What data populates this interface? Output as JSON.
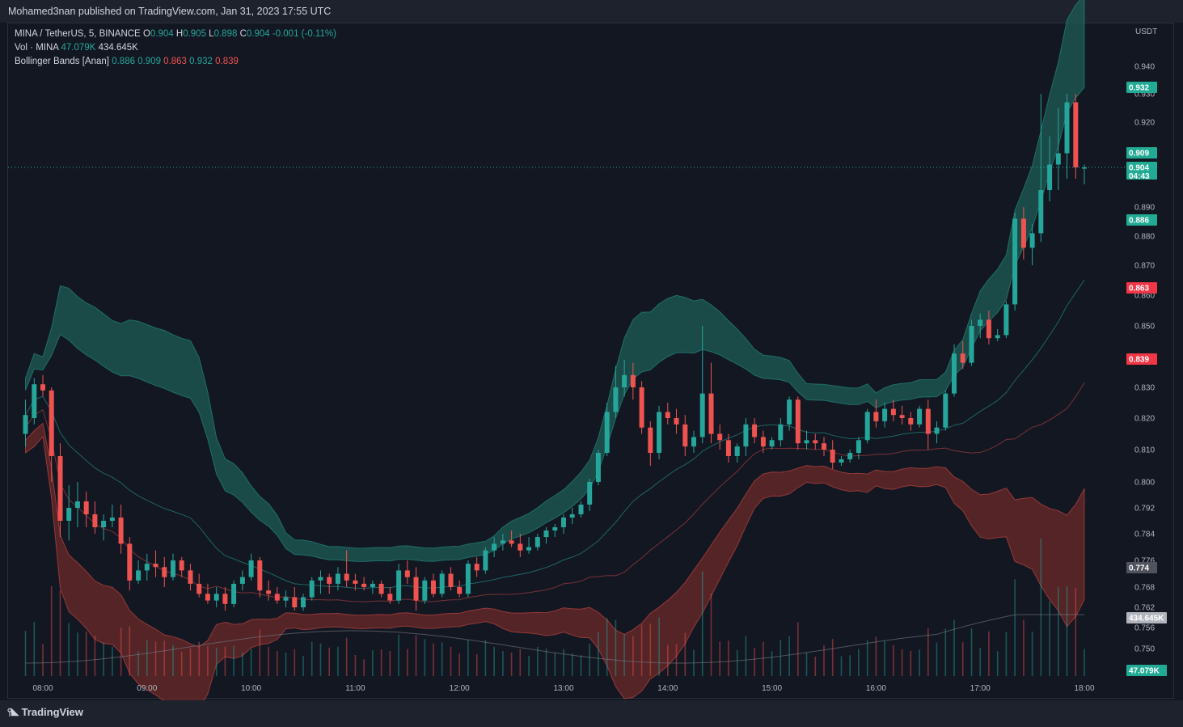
{
  "header": {
    "publisher_line": "Mohamed3nan published on TradingView.com, Jan 31, 2023 17:55 UTC"
  },
  "legend": {
    "symbol": "MINA / TetherUS, 5, BINANCE",
    "open_label": "O",
    "open": "0.904",
    "high_label": "H",
    "high": "0.905",
    "low_label": "L",
    "low": "0.898",
    "close_label": "C",
    "close": "0.904",
    "change": "-0.001 (-0.11%)",
    "vol_label": "Vol · MINA",
    "vol_value": "47.079K",
    "vol_ma": "434.645K",
    "bb_label": "Bollinger Bands [Anan]",
    "bb_values": [
      "0.886",
      "0.909",
      "0.863",
      "0.932",
      "0.839"
    ]
  },
  "branding": {
    "logo_text": "TradingView"
  },
  "chart_data": {
    "type": "candlestick",
    "symbol": "MINA / TetherUS",
    "interval": "5",
    "exchange": "BINANCE",
    "currency": "USDT",
    "grid": false,
    "price_axis_side": "right",
    "price_ticks": [
      "0.940",
      "0.930",
      "0.920",
      "0.890",
      "0.880",
      "0.870",
      "0.860",
      "0.850",
      "0.830",
      "0.820",
      "0.810",
      "0.800",
      "0.792",
      "0.784",
      "0.776",
      "0.768",
      "0.762",
      "0.756",
      "0.750"
    ],
    "time_ticks": [
      "08:00",
      "09:00",
      "10:00",
      "11:00",
      "12:00",
      "13:00",
      "14:00",
      "15:00",
      "16:00",
      "17:00",
      "18:00"
    ],
    "price_tags": [
      {
        "value": "0.932",
        "color": "#22ab94"
      },
      {
        "value": "0.909",
        "color": "#22ab94"
      },
      {
        "value": "0.904",
        "color": "#22ab94",
        "sub": "04:43"
      },
      {
        "value": "0.886",
        "color": "#22ab94"
      },
      {
        "value": "0.863",
        "color": "#f23645"
      },
      {
        "value": "0.839",
        "color": "#f23645"
      },
      {
        "value": "0.774",
        "color": "#50535e"
      },
      {
        "value": "434.645K",
        "color": "#b2b5be"
      },
      {
        "value": "47.079K",
        "color": "#22ab94"
      }
    ],
    "last_price": 0.904,
    "colors": {
      "up": "#26a69a",
      "down": "#ef5350",
      "upper_band": "#1f5e55",
      "lower_band": "#6b2a2a"
    },
    "candles": [
      {
        "t": "07:50",
        "o": 0.815,
        "h": 0.826,
        "l": 0.811,
        "c": 0.821
      },
      {
        "t": "07:55",
        "o": 0.82,
        "h": 0.833,
        "l": 0.818,
        "c": 0.831
      },
      {
        "t": "08:00",
        "o": 0.831,
        "h": 0.834,
        "l": 0.827,
        "c": 0.829
      },
      {
        "t": "08:05",
        "o": 0.829,
        "h": 0.83,
        "l": 0.8,
        "c": 0.808
      },
      {
        "t": "08:10",
        "o": 0.808,
        "h": 0.812,
        "l": 0.783,
        "c": 0.788
      },
      {
        "t": "08:15",
        "o": 0.788,
        "h": 0.799,
        "l": 0.782,
        "c": 0.792
      },
      {
        "t": "08:20",
        "o": 0.792,
        "h": 0.8,
        "l": 0.786,
        "c": 0.794
      },
      {
        "t": "08:25",
        "o": 0.794,
        "h": 0.797,
        "l": 0.786,
        "c": 0.79
      },
      {
        "t": "08:30",
        "o": 0.79,
        "h": 0.794,
        "l": 0.784,
        "c": 0.786
      },
      {
        "t": "08:35",
        "o": 0.786,
        "h": 0.79,
        "l": 0.782,
        "c": 0.788
      },
      {
        "t": "08:40",
        "o": 0.788,
        "h": 0.793,
        "l": 0.786,
        "c": 0.789
      },
      {
        "t": "08:45",
        "o": 0.789,
        "h": 0.793,
        "l": 0.778,
        "c": 0.781
      },
      {
        "t": "08:50",
        "o": 0.781,
        "h": 0.783,
        "l": 0.767,
        "c": 0.77
      },
      {
        "t": "08:55",
        "o": 0.77,
        "h": 0.776,
        "l": 0.769,
        "c": 0.773
      },
      {
        "t": "09:00",
        "o": 0.773,
        "h": 0.778,
        "l": 0.77,
        "c": 0.775
      },
      {
        "t": "09:05",
        "o": 0.775,
        "h": 0.779,
        "l": 0.771,
        "c": 0.774
      },
      {
        "t": "09:10",
        "o": 0.774,
        "h": 0.777,
        "l": 0.768,
        "c": 0.771
      },
      {
        "t": "09:15",
        "o": 0.771,
        "h": 0.778,
        "l": 0.77,
        "c": 0.776
      },
      {
        "t": "09:20",
        "o": 0.776,
        "h": 0.777,
        "l": 0.771,
        "c": 0.773
      },
      {
        "t": "09:25",
        "o": 0.773,
        "h": 0.775,
        "l": 0.767,
        "c": 0.769
      },
      {
        "t": "09:30",
        "o": 0.769,
        "h": 0.772,
        "l": 0.765,
        "c": 0.766
      },
      {
        "t": "09:35",
        "o": 0.766,
        "h": 0.769,
        "l": 0.763,
        "c": 0.764
      },
      {
        "t": "09:40",
        "o": 0.764,
        "h": 0.768,
        "l": 0.762,
        "c": 0.766
      },
      {
        "t": "09:45",
        "o": 0.766,
        "h": 0.768,
        "l": 0.761,
        "c": 0.763
      },
      {
        "t": "09:50",
        "o": 0.763,
        "h": 0.77,
        "l": 0.762,
        "c": 0.769
      },
      {
        "t": "09:55",
        "o": 0.769,
        "h": 0.773,
        "l": 0.767,
        "c": 0.771
      },
      {
        "t": "10:00",
        "o": 0.771,
        "h": 0.778,
        "l": 0.77,
        "c": 0.776
      },
      {
        "t": "10:05",
        "o": 0.776,
        "h": 0.777,
        "l": 0.765,
        "c": 0.767
      },
      {
        "t": "10:10",
        "o": 0.767,
        "h": 0.77,
        "l": 0.764,
        "c": 0.766
      },
      {
        "t": "10:15",
        "o": 0.766,
        "h": 0.768,
        "l": 0.763,
        "c": 0.764
      },
      {
        "t": "10:20",
        "o": 0.764,
        "h": 0.767,
        "l": 0.762,
        "c": 0.765
      },
      {
        "t": "10:25",
        "o": 0.765,
        "h": 0.768,
        "l": 0.761,
        "c": 0.762
      },
      {
        "t": "10:30",
        "o": 0.762,
        "h": 0.766,
        "l": 0.761,
        "c": 0.765
      },
      {
        "t": "10:35",
        "o": 0.765,
        "h": 0.771,
        "l": 0.764,
        "c": 0.77
      },
      {
        "t": "10:40",
        "o": 0.77,
        "h": 0.773,
        "l": 0.766,
        "c": 0.771
      },
      {
        "t": "10:45",
        "o": 0.771,
        "h": 0.772,
        "l": 0.766,
        "c": 0.769
      },
      {
        "t": "10:50",
        "o": 0.769,
        "h": 0.774,
        "l": 0.767,
        "c": 0.772
      },
      {
        "t": "10:55",
        "o": 0.772,
        "h": 0.779,
        "l": 0.768,
        "c": 0.77
      },
      {
        "t": "11:00",
        "o": 0.77,
        "h": 0.772,
        "l": 0.767,
        "c": 0.769
      },
      {
        "t": "11:05",
        "o": 0.769,
        "h": 0.771,
        "l": 0.767,
        "c": 0.768
      },
      {
        "t": "11:10",
        "o": 0.768,
        "h": 0.77,
        "l": 0.766,
        "c": 0.769
      },
      {
        "t": "11:15",
        "o": 0.769,
        "h": 0.77,
        "l": 0.765,
        "c": 0.766
      },
      {
        "t": "11:20",
        "o": 0.766,
        "h": 0.768,
        "l": 0.763,
        "c": 0.764
      },
      {
        "t": "11:25",
        "o": 0.764,
        "h": 0.775,
        "l": 0.763,
        "c": 0.773
      },
      {
        "t": "11:30",
        "o": 0.773,
        "h": 0.776,
        "l": 0.769,
        "c": 0.771
      },
      {
        "t": "11:35",
        "o": 0.771,
        "h": 0.774,
        "l": 0.761,
        "c": 0.764
      },
      {
        "t": "11:40",
        "o": 0.764,
        "h": 0.771,
        "l": 0.763,
        "c": 0.77
      },
      {
        "t": "11:45",
        "o": 0.77,
        "h": 0.772,
        "l": 0.765,
        "c": 0.766
      },
      {
        "t": "11:50",
        "o": 0.766,
        "h": 0.773,
        "l": 0.765,
        "c": 0.772
      },
      {
        "t": "11:55",
        "o": 0.772,
        "h": 0.774,
        "l": 0.767,
        "c": 0.768
      },
      {
        "t": "12:00",
        "o": 0.768,
        "h": 0.77,
        "l": 0.765,
        "c": 0.766
      },
      {
        "t": "12:05",
        "o": 0.766,
        "h": 0.776,
        "l": 0.765,
        "c": 0.775
      },
      {
        "t": "12:10",
        "o": 0.775,
        "h": 0.777,
        "l": 0.771,
        "c": 0.773
      },
      {
        "t": "12:15",
        "o": 0.773,
        "h": 0.78,
        "l": 0.772,
        "c": 0.779
      },
      {
        "t": "12:20",
        "o": 0.779,
        "h": 0.783,
        "l": 0.777,
        "c": 0.781
      },
      {
        "t": "12:25",
        "o": 0.781,
        "h": 0.784,
        "l": 0.779,
        "c": 0.782
      },
      {
        "t": "12:30",
        "o": 0.782,
        "h": 0.785,
        "l": 0.78,
        "c": 0.781
      },
      {
        "t": "12:35",
        "o": 0.781,
        "h": 0.784,
        "l": 0.777,
        "c": 0.779
      },
      {
        "t": "12:40",
        "o": 0.779,
        "h": 0.783,
        "l": 0.778,
        "c": 0.78
      },
      {
        "t": "12:45",
        "o": 0.78,
        "h": 0.784,
        "l": 0.779,
        "c": 0.783
      },
      {
        "t": "12:50",
        "o": 0.783,
        "h": 0.786,
        "l": 0.781,
        "c": 0.785
      },
      {
        "t": "12:55",
        "o": 0.785,
        "h": 0.787,
        "l": 0.783,
        "c": 0.786
      },
      {
        "t": "13:00",
        "o": 0.786,
        "h": 0.79,
        "l": 0.784,
        "c": 0.789
      },
      {
        "t": "13:05",
        "o": 0.789,
        "h": 0.792,
        "l": 0.787,
        "c": 0.79
      },
      {
        "t": "13:10",
        "o": 0.79,
        "h": 0.794,
        "l": 0.789,
        "c": 0.793
      },
      {
        "t": "13:15",
        "o": 0.793,
        "h": 0.801,
        "l": 0.791,
        "c": 0.8
      },
      {
        "t": "13:20",
        "o": 0.8,
        "h": 0.81,
        "l": 0.799,
        "c": 0.809
      },
      {
        "t": "13:25",
        "o": 0.809,
        "h": 0.825,
        "l": 0.808,
        "c": 0.822
      },
      {
        "t": "13:30",
        "o": 0.822,
        "h": 0.837,
        "l": 0.82,
        "c": 0.83
      },
      {
        "t": "13:35",
        "o": 0.83,
        "h": 0.839,
        "l": 0.827,
        "c": 0.834
      },
      {
        "t": "13:40",
        "o": 0.834,
        "h": 0.838,
        "l": 0.826,
        "c": 0.83
      },
      {
        "t": "13:45",
        "o": 0.83,
        "h": 0.832,
        "l": 0.815,
        "c": 0.817
      },
      {
        "t": "13:50",
        "o": 0.817,
        "h": 0.819,
        "l": 0.805,
        "c": 0.809
      },
      {
        "t": "13:55",
        "o": 0.809,
        "h": 0.824,
        "l": 0.807,
        "c": 0.822
      },
      {
        "t": "14:00",
        "o": 0.822,
        "h": 0.825,
        "l": 0.818,
        "c": 0.82
      },
      {
        "t": "14:05",
        "o": 0.82,
        "h": 0.823,
        "l": 0.815,
        "c": 0.818
      },
      {
        "t": "14:10",
        "o": 0.818,
        "h": 0.821,
        "l": 0.808,
        "c": 0.811
      },
      {
        "t": "14:15",
        "o": 0.811,
        "h": 0.816,
        "l": 0.809,
        "c": 0.814
      },
      {
        "t": "14:20",
        "o": 0.814,
        "h": 0.85,
        "l": 0.812,
        "c": 0.828
      },
      {
        "t": "14:25",
        "o": 0.828,
        "h": 0.838,
        "l": 0.812,
        "c": 0.815
      },
      {
        "t": "14:30",
        "o": 0.815,
        "h": 0.818,
        "l": 0.81,
        "c": 0.813
      },
      {
        "t": "14:35",
        "o": 0.813,
        "h": 0.815,
        "l": 0.806,
        "c": 0.808
      },
      {
        "t": "14:40",
        "o": 0.808,
        "h": 0.812,
        "l": 0.806,
        "c": 0.811
      },
      {
        "t": "14:45",
        "o": 0.811,
        "h": 0.82,
        "l": 0.808,
        "c": 0.818
      },
      {
        "t": "14:50",
        "o": 0.818,
        "h": 0.82,
        "l": 0.812,
        "c": 0.814
      },
      {
        "t": "14:55",
        "o": 0.814,
        "h": 0.816,
        "l": 0.809,
        "c": 0.811
      },
      {
        "t": "15:00",
        "o": 0.811,
        "h": 0.814,
        "l": 0.81,
        "c": 0.813
      },
      {
        "t": "15:05",
        "o": 0.813,
        "h": 0.82,
        "l": 0.811,
        "c": 0.818
      },
      {
        "t": "15:10",
        "o": 0.818,
        "h": 0.827,
        "l": 0.816,
        "c": 0.826
      },
      {
        "t": "15:15",
        "o": 0.826,
        "h": 0.827,
        "l": 0.81,
        "c": 0.812
      },
      {
        "t": "15:20",
        "o": 0.812,
        "h": 0.816,
        "l": 0.81,
        "c": 0.813
      },
      {
        "t": "15:25",
        "o": 0.813,
        "h": 0.815,
        "l": 0.81,
        "c": 0.812
      },
      {
        "t": "15:30",
        "o": 0.812,
        "h": 0.814,
        "l": 0.808,
        "c": 0.81
      },
      {
        "t": "15:35",
        "o": 0.81,
        "h": 0.813,
        "l": 0.804,
        "c": 0.806
      },
      {
        "t": "15:40",
        "o": 0.806,
        "h": 0.808,
        "l": 0.805,
        "c": 0.807
      },
      {
        "t": "15:45",
        "o": 0.807,
        "h": 0.81,
        "l": 0.806,
        "c": 0.809
      },
      {
        "t": "15:50",
        "o": 0.809,
        "h": 0.814,
        "l": 0.807,
        "c": 0.813
      },
      {
        "t": "15:55",
        "o": 0.813,
        "h": 0.823,
        "l": 0.812,
        "c": 0.822
      },
      {
        "t": "16:00",
        "o": 0.822,
        "h": 0.826,
        "l": 0.817,
        "c": 0.819
      },
      {
        "t": "16:05",
        "o": 0.819,
        "h": 0.825,
        "l": 0.817,
        "c": 0.823
      },
      {
        "t": "16:10",
        "o": 0.823,
        "h": 0.826,
        "l": 0.819,
        "c": 0.821
      },
      {
        "t": "16:15",
        "o": 0.821,
        "h": 0.824,
        "l": 0.818,
        "c": 0.82
      },
      {
        "t": "16:20",
        "o": 0.82,
        "h": 0.822,
        "l": 0.816,
        "c": 0.818
      },
      {
        "t": "16:25",
        "o": 0.818,
        "h": 0.824,
        "l": 0.817,
        "c": 0.823
      },
      {
        "t": "16:30",
        "o": 0.823,
        "h": 0.826,
        "l": 0.81,
        "c": 0.815
      },
      {
        "t": "16:35",
        "o": 0.815,
        "h": 0.819,
        "l": 0.812,
        "c": 0.817
      },
      {
        "t": "16:40",
        "o": 0.817,
        "h": 0.829,
        "l": 0.816,
        "c": 0.828
      },
      {
        "t": "16:45",
        "o": 0.828,
        "h": 0.844,
        "l": 0.827,
        "c": 0.841
      },
      {
        "t": "16:50",
        "o": 0.841,
        "h": 0.845,
        "l": 0.836,
        "c": 0.838
      },
      {
        "t": "16:55",
        "o": 0.838,
        "h": 0.852,
        "l": 0.837,
        "c": 0.85
      },
      {
        "t": "17:00",
        "o": 0.85,
        "h": 0.854,
        "l": 0.846,
        "c": 0.852
      },
      {
        "t": "17:05",
        "o": 0.852,
        "h": 0.855,
        "l": 0.844,
        "c": 0.846
      },
      {
        "t": "17:10",
        "o": 0.846,
        "h": 0.849,
        "l": 0.845,
        "c": 0.847
      },
      {
        "t": "17:15",
        "o": 0.847,
        "h": 0.858,
        "l": 0.846,
        "c": 0.857
      },
      {
        "t": "17:20",
        "o": 0.857,
        "h": 0.888,
        "l": 0.855,
        "c": 0.886
      },
      {
        "t": "17:25",
        "o": 0.886,
        "h": 0.89,
        "l": 0.872,
        "c": 0.876
      },
      {
        "t": "17:30",
        "o": 0.876,
        "h": 0.884,
        "l": 0.87,
        "c": 0.881
      },
      {
        "t": "17:35",
        "o": 0.881,
        "h": 0.93,
        "l": 0.878,
        "c": 0.896
      },
      {
        "t": "17:40",
        "o": 0.896,
        "h": 0.915,
        "l": 0.892,
        "c": 0.905
      },
      {
        "t": "17:45",
        "o": 0.905,
        "h": 0.925,
        "l": 0.896,
        "c": 0.909
      },
      {
        "t": "17:50",
        "o": 0.909,
        "h": 0.93,
        "l": 0.9,
        "c": 0.927
      },
      {
        "t": "17:55",
        "o": 0.927,
        "h": 0.93,
        "l": 0.9,
        "c": 0.904
      },
      {
        "t": "18:00",
        "o": 0.904,
        "h": 0.905,
        "l": 0.898,
        "c": 0.904
      }
    ],
    "volume_ma_last": "434.645K",
    "volume_last": "47.079K"
  }
}
